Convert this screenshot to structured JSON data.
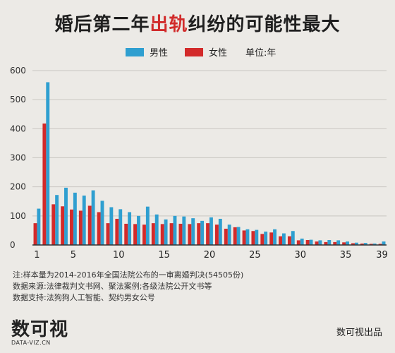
{
  "title": {
    "before": "婚后第二年",
    "highlight": "出轨",
    "after": "纠纷的可能性最大"
  },
  "legend": {
    "male": "男性",
    "female": "女性",
    "unit": "单位:年"
  },
  "notes": [
    "注:样本量为2014-2016年全国法院公布的一审离婚判决(54505份)",
    "数据来源:法律裁判文书网、聚法案例;各级法院公开文书等",
    "数据支持:法狗狗人工智能、契约男女公号"
  ],
  "logo": {
    "mark": "数可视",
    "domain": "DATA-VIZ.CN"
  },
  "credit": "数可视出品",
  "colors": {
    "male": "#2f9fd0",
    "female": "#d32a2a",
    "grid": "#c9c6c1",
    "axis": "#333333"
  },
  "chart_data": {
    "type": "bar",
    "categories": [
      1,
      2,
      3,
      4,
      5,
      6,
      7,
      8,
      9,
      10,
      11,
      12,
      13,
      14,
      15,
      16,
      17,
      18,
      19,
      20,
      21,
      22,
      23,
      24,
      25,
      26,
      27,
      28,
      29,
      30,
      31,
      32,
      33,
      34,
      35,
      36,
      37,
      38,
      39
    ],
    "x_tick_labels": [
      "1",
      "5",
      "10",
      "15",
      "20",
      "25",
      "30",
      "35",
      "39"
    ],
    "series": [
      {
        "name": "男性",
        "values": [
          125,
          560,
          172,
          197,
          180,
          170,
          188,
          152,
          130,
          123,
          113,
          100,
          132,
          105,
          88,
          100,
          98,
          92,
          83,
          95,
          90,
          70,
          62,
          54,
          52,
          46,
          54,
          40,
          48,
          22,
          18,
          16,
          17,
          16,
          12,
          8,
          7,
          5,
          12
        ]
      },
      {
        "name": "女性",
        "values": [
          75,
          418,
          140,
          133,
          122,
          118,
          135,
          113,
          75,
          90,
          73,
          72,
          70,
          75,
          72,
          75,
          73,
          72,
          75,
          75,
          70,
          56,
          61,
          50,
          48,
          38,
          43,
          30,
          30,
          16,
          17,
          12,
          10,
          10,
          9,
          6,
          5,
          4,
          4
        ]
      }
    ],
    "ylim": [
      0,
      600
    ],
    "yticks": [
      0,
      100,
      200,
      300,
      400,
      500,
      600
    ],
    "grid": true,
    "legend_position": "top"
  }
}
